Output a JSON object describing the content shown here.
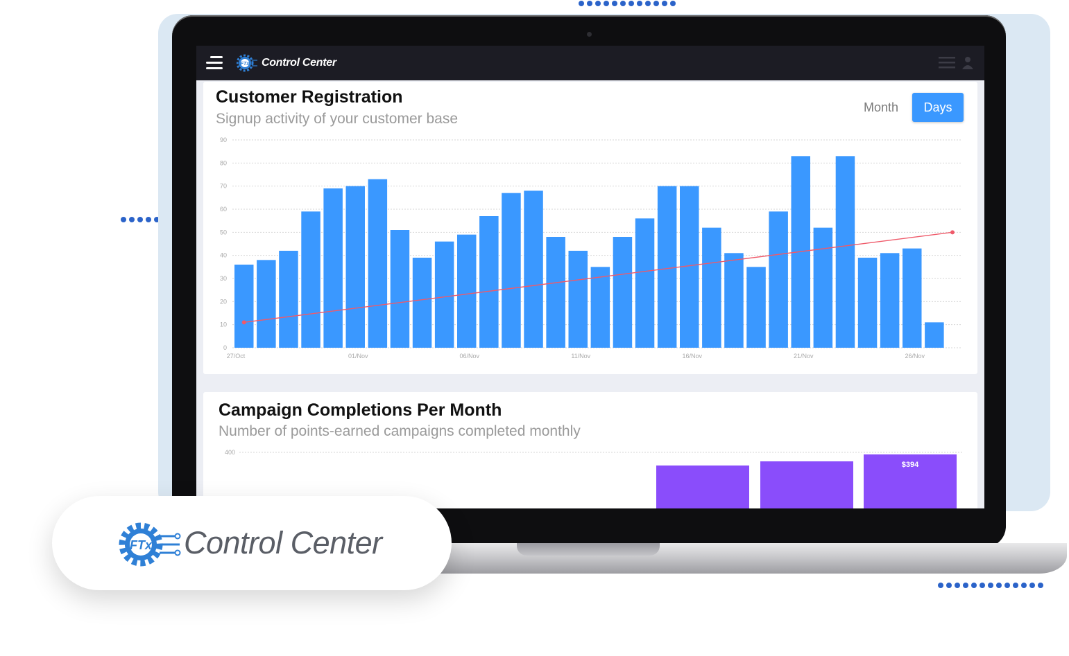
{
  "app": {
    "name": "Control Center",
    "logo_text": "FTx"
  },
  "topbar": {
    "menu_icon": "hamburger-menu-icon",
    "right_icons": [
      "list-icon",
      "user-icon"
    ]
  },
  "registration": {
    "title": "Customer Registration",
    "subtitle": "Signup activity of your customer base",
    "toggle": {
      "month_label": "Month",
      "days_label": "Days",
      "active": "Days"
    }
  },
  "campaigns": {
    "title": "Campaign Completions Per Month",
    "subtitle": "Number of points-earned campaigns completed monthly"
  },
  "colors": {
    "bar": "#3a98ff",
    "trend": "#ef5a6a",
    "campaign_bar": "#8a4dfb",
    "accent": "#2b63c9"
  },
  "chart_data": [
    {
      "type": "bar",
      "title": "Customer Registration",
      "ylim": [
        0,
        90
      ],
      "yticks": [
        0,
        10,
        20,
        30,
        40,
        50,
        60,
        70,
        80,
        90
      ],
      "x_tick_labels": [
        "27/Oct",
        "01/Nov",
        "06/Nov",
        "11/Nov",
        "16/Nov",
        "21/Nov",
        "26/Nov"
      ],
      "x_tick_every": 5,
      "values": [
        36,
        38,
        42,
        59,
        69,
        70,
        73,
        51,
        39,
        46,
        49,
        57,
        67,
        68,
        48,
        42,
        35,
        48,
        56,
        70,
        70,
        52,
        41,
        35,
        59,
        83,
        52,
        83,
        39,
        41,
        43,
        11
      ],
      "trendline": {
        "start": 11,
        "end": 50
      },
      "grid": true
    },
    {
      "type": "bar",
      "title": "Campaign Completions Per Month",
      "ylim": [
        0,
        400
      ],
      "yticks": [
        400
      ],
      "values": [
        362,
        374,
        394
      ],
      "data_labels": [
        "",
        "",
        "$394"
      ],
      "grid": true
    }
  ],
  "pill": {
    "name": "Control Center",
    "logo_text": "FTx"
  }
}
